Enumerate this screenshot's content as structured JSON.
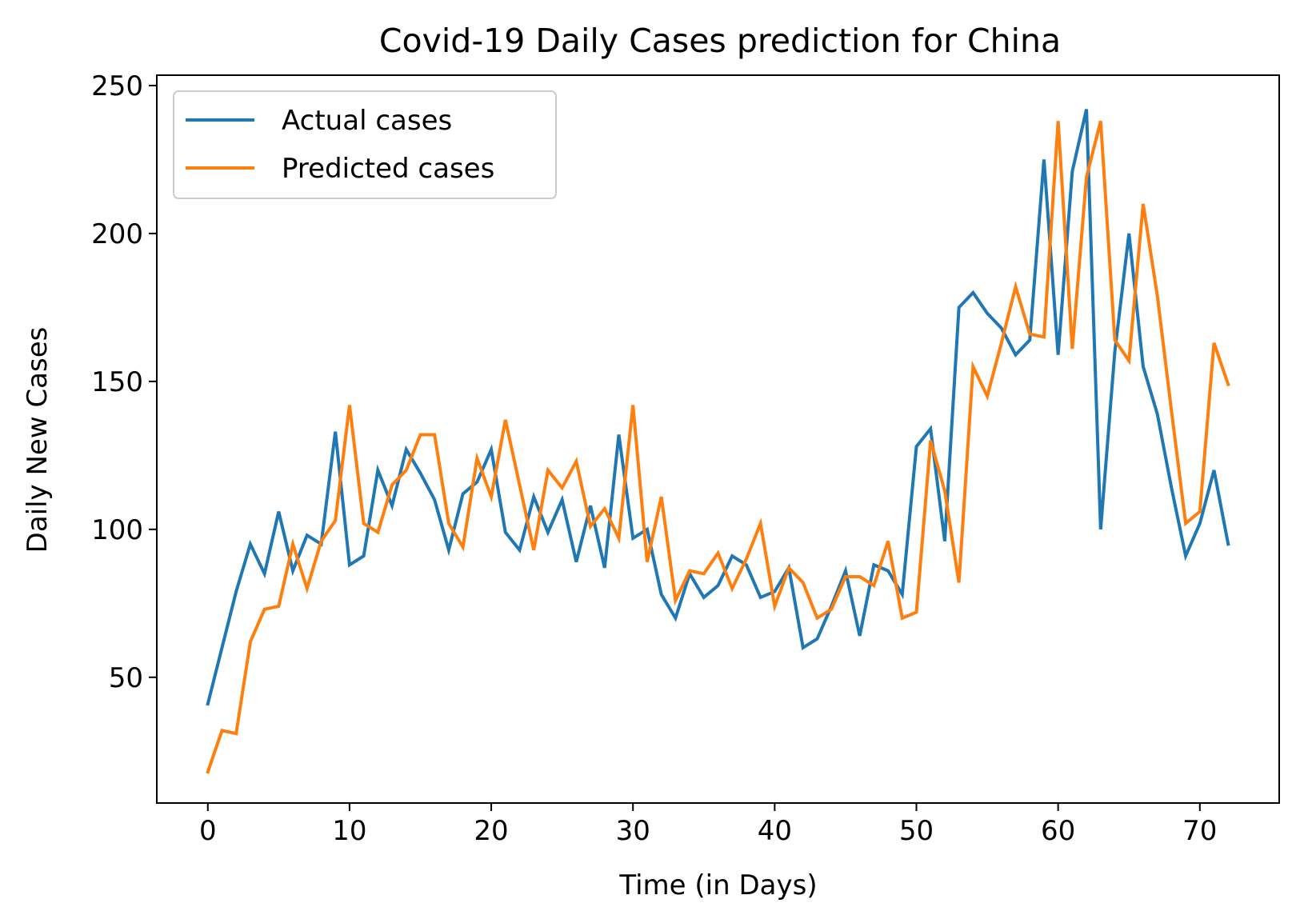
{
  "chart_data": {
    "type": "line",
    "title": "Covid-19 Daily Cases prediction for China",
    "xlabel": "Time (in Days)",
    "ylabel": "Daily New Cases",
    "xlim": [
      -3.6,
      75.6
    ],
    "ylim": [
      7.5,
      253.5
    ],
    "xticks": [
      0,
      10,
      20,
      30,
      40,
      50,
      60,
      70
    ],
    "yticks": [
      50,
      100,
      150,
      200,
      250
    ],
    "grid": false,
    "legend_position": "top-left",
    "x": [
      0,
      1,
      2,
      3,
      4,
      5,
      6,
      7,
      8,
      9,
      10,
      11,
      12,
      13,
      14,
      15,
      16,
      17,
      18,
      19,
      20,
      21,
      22,
      23,
      24,
      25,
      26,
      27,
      28,
      29,
      30,
      31,
      32,
      33,
      34,
      35,
      36,
      37,
      38,
      39,
      40,
      41,
      42,
      43,
      44,
      45,
      46,
      47,
      48,
      49,
      50,
      51,
      52,
      53,
      54,
      55,
      56,
      57,
      58,
      59,
      60,
      61,
      62,
      63,
      64,
      65,
      66,
      67,
      68,
      69,
      70,
      71,
      72
    ],
    "series": [
      {
        "name": "Actual cases",
        "color": "#1f77b4",
        "values": [
          41,
          60,
          79,
          95,
          85,
          106,
          86,
          98,
          95,
          133,
          88,
          91,
          120,
          108,
          127,
          119,
          110,
          93,
          112,
          116,
          127,
          99,
          93,
          111,
          99,
          110,
          89,
          108,
          87,
          132,
          97,
          100,
          78,
          70,
          85,
          77,
          81,
          91,
          88,
          77,
          79,
          87,
          60,
          63,
          74,
          86,
          64,
          88,
          86,
          78,
          128,
          134,
          96,
          175,
          180,
          173,
          168,
          159,
          164,
          225,
          159,
          221,
          242,
          100,
          160,
          200,
          155,
          139,
          114,
          91,
          102,
          120,
          95
        ]
      },
      {
        "name": "Predicted cases",
        "color": "#ff7f0e",
        "values": [
          18,
          32,
          31,
          62,
          73,
          74,
          95,
          80,
          96,
          103,
          142,
          102,
          99,
          115,
          120,
          132,
          132,
          102,
          94,
          124,
          111,
          137,
          115,
          93,
          120,
          114,
          123,
          101,
          107,
          97,
          142,
          89,
          111,
          76,
          86,
          85,
          92,
          80,
          90,
          102,
          74,
          87,
          82,
          70,
          73,
          84,
          84,
          81,
          96,
          70,
          72,
          130,
          113,
          82,
          155,
          145,
          163,
          182,
          166,
          165,
          238,
          161,
          219,
          238,
          164,
          157,
          210,
          179,
          140,
          102,
          106,
          163,
          149
        ]
      }
    ]
  }
}
